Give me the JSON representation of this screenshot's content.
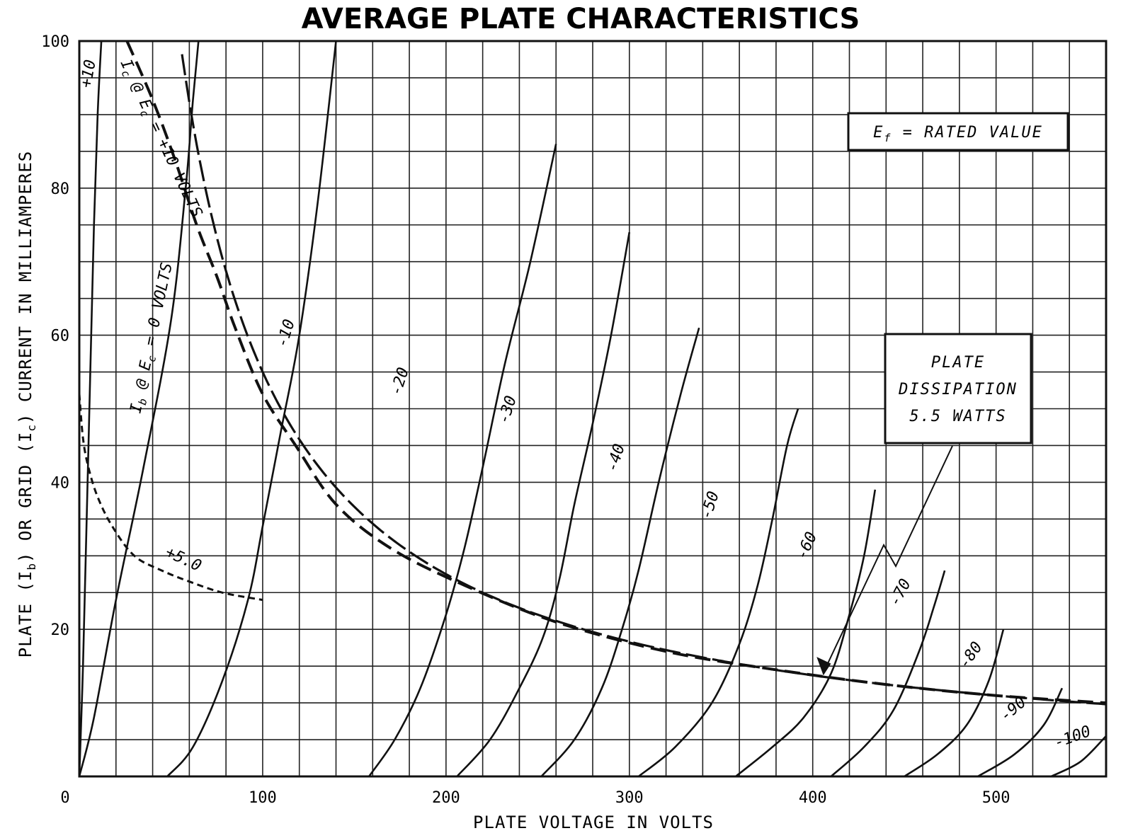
{
  "chart_data": {
    "type": "line",
    "title": "AVERAGE PLATE CHARACTERISTICS",
    "xlabel": "PLATE VOLTAGE IN VOLTS",
    "ylabel": "PLATE (I_b) OR GRID (I_c) CURRENT IN MILLIAMPERES",
    "ylabel_parts": [
      "PLATE (I",
      "b",
      ") OR GRID (I",
      "c",
      ") CURRENT IN MILLIAMPERES"
    ],
    "xlim": [
      0,
      560
    ],
    "ylim": [
      0,
      100
    ],
    "x_ticks": [
      {
        "value": 0,
        "label": "0"
      },
      {
        "value": 100,
        "label": "100"
      },
      {
        "value": 200,
        "label": "200"
      },
      {
        "value": 300,
        "label": "300"
      },
      {
        "value": 400,
        "label": "400"
      },
      {
        "value": 500,
        "label": "500"
      }
    ],
    "y_ticks": [
      {
        "value": 20,
        "label": "20"
      },
      {
        "value": 40,
        "label": "40"
      },
      {
        "value": 60,
        "label": "60"
      },
      {
        "value": 80,
        "label": "80"
      },
      {
        "value": 100,
        "label": "100"
      }
    ],
    "grid": {
      "x_step": 20,
      "y_step": 5
    },
    "plate_curves": [
      {
        "name": "+10",
        "points": [
          [
            0,
            0
          ],
          [
            2,
            15
          ],
          [
            4,
            35
          ],
          [
            6,
            55
          ],
          [
            8,
            75
          ],
          [
            10,
            90
          ],
          [
            12,
            100
          ]
        ]
      },
      {
        "name": "Ib @ Ec = 0 VOLTS",
        "points": [
          [
            0,
            0
          ],
          [
            8,
            8
          ],
          [
            20,
            24
          ],
          [
            35,
            42
          ],
          [
            50,
            62
          ],
          [
            58,
            80
          ],
          [
            62,
            92
          ],
          [
            65,
            100
          ]
        ]
      },
      {
        "name": "-10",
        "points": [
          [
            48,
            0
          ],
          [
            62,
            4
          ],
          [
            78,
            13
          ],
          [
            92,
            24
          ],
          [
            100,
            34
          ],
          [
            110,
            47
          ],
          [
            120,
            60
          ],
          [
            130,
            78
          ],
          [
            140,
            100
          ]
        ]
      },
      {
        "name": "-20",
        "points": [
          [
            158,
            0
          ],
          [
            172,
            5
          ],
          [
            186,
            12
          ],
          [
            200,
            22
          ],
          [
            210,
            31
          ],
          [
            220,
            42
          ],
          [
            232,
            56
          ],
          [
            246,
            70
          ],
          [
            260,
            86
          ]
        ]
      },
      {
        "name": "-30",
        "points": [
          [
            206,
            0
          ],
          [
            224,
            5
          ],
          [
            240,
            12
          ],
          [
            253,
            19
          ],
          [
            262,
            27
          ],
          [
            270,
            37
          ],
          [
            280,
            48
          ],
          [
            290,
            60
          ],
          [
            300,
            74
          ]
        ]
      },
      {
        "name": "-40",
        "points": [
          [
            252,
            0
          ],
          [
            270,
            5
          ],
          [
            285,
            12
          ],
          [
            296,
            20
          ],
          [
            305,
            28
          ],
          [
            316,
            40
          ],
          [
            328,
            52
          ],
          [
            338,
            61
          ]
        ]
      },
      {
        "name": "-50",
        "points": [
          [
            305,
            0
          ],
          [
            325,
            4
          ],
          [
            345,
            10
          ],
          [
            360,
            18
          ],
          [
            370,
            26
          ],
          [
            378,
            35
          ],
          [
            386,
            45
          ],
          [
            392,
            50
          ]
        ]
      },
      {
        "name": "-60",
        "points": [
          [
            358,
            0
          ],
          [
            378,
            4
          ],
          [
            395,
            8
          ],
          [
            410,
            14
          ],
          [
            420,
            22
          ],
          [
            428,
            30
          ],
          [
            434,
            39
          ]
        ]
      },
      {
        "name": "-70",
        "points": [
          [
            410,
            0
          ],
          [
            428,
            4
          ],
          [
            444,
            9
          ],
          [
            458,
            17
          ],
          [
            466,
            23
          ],
          [
            472,
            28
          ]
        ]
      },
      {
        "name": "-80",
        "points": [
          [
            450,
            0
          ],
          [
            468,
            3
          ],
          [
            484,
            7
          ],
          [
            496,
            13
          ],
          [
            504,
            20
          ]
        ]
      },
      {
        "name": "-90",
        "points": [
          [
            490,
            0
          ],
          [
            510,
            3
          ],
          [
            526,
            7
          ],
          [
            536,
            12
          ]
        ]
      },
      {
        "name": "-100",
        "points": [
          [
            530,
            0
          ],
          [
            546,
            2
          ],
          [
            560,
            5.5
          ]
        ]
      }
    ],
    "grid_curves": [
      {
        "name": "Ic @ Ec = +10 VOLTS",
        "style": "dashed",
        "points": [
          [
            26,
            100
          ],
          [
            40,
            92
          ],
          [
            52,
            84
          ],
          [
            64,
            75
          ],
          [
            75,
            68
          ],
          [
            85,
            61
          ],
          [
            100,
            52
          ],
          [
            118,
            45
          ],
          [
            140,
            37
          ],
          [
            170,
            31
          ],
          [
            210,
            26
          ],
          [
            260,
            21
          ],
          [
            320,
            17
          ],
          [
            380,
            14.5
          ],
          [
            440,
            12.5
          ],
          [
            500,
            11
          ],
          [
            560,
            10
          ]
        ]
      },
      {
        "name": "+5.0",
        "style": "dashed",
        "points": [
          [
            0,
            52
          ],
          [
            2,
            46
          ],
          [
            5,
            42
          ],
          [
            10,
            38
          ],
          [
            18,
            34
          ],
          [
            30,
            30
          ],
          [
            45,
            28
          ],
          [
            60,
            26.5
          ],
          [
            78,
            25
          ],
          [
            100,
            24
          ]
        ]
      }
    ],
    "dissipation_curve": {
      "name": "PLATE DISSIPATION 5.5 WATTS",
      "watts": 5.5
    },
    "curve_labels": [
      "+10",
      "I_b @ E_c = 0 VOLTS",
      "I_c @ E_c = +10 VOLTS",
      "+5.0",
      "-10",
      "-20",
      "-30",
      "-40",
      "-50",
      "-60",
      "-70",
      "-80",
      "-90",
      "-100"
    ],
    "annotations": {
      "filament": "E_f = RATED VALUE",
      "filament_parts": [
        "E",
        "f",
        " = RATED VALUE"
      ],
      "dissipation_lines": [
        "PLATE",
        "DISSIPATION",
        "5.5 WATTS"
      ]
    }
  }
}
